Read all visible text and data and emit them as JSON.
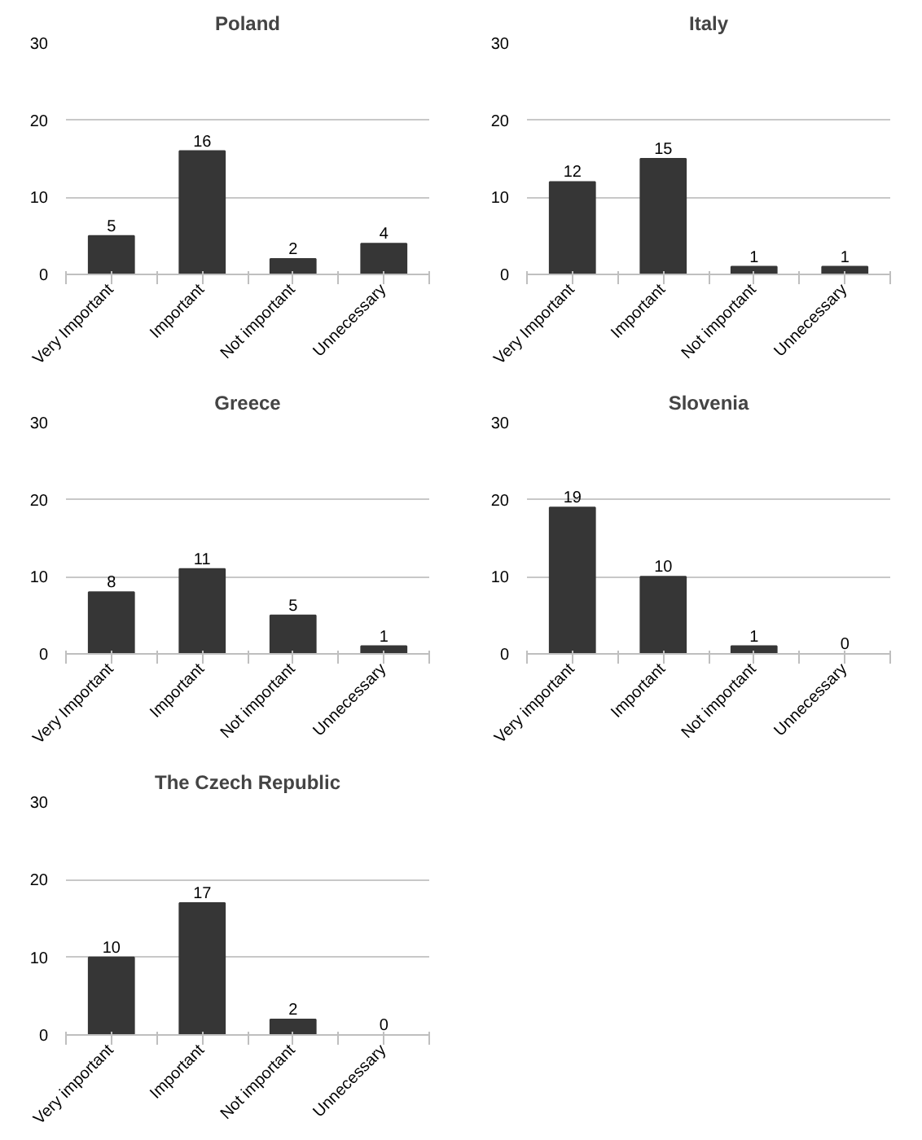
{
  "chart_data": [
    {
      "type": "bar",
      "title": "Poland",
      "categories": [
        "Very Important",
        "Important",
        "Not important",
        "Unnecessary"
      ],
      "values": [
        5,
        16,
        2,
        4
      ],
      "color": "#363636",
      "ylim": [
        0,
        30
      ],
      "yticks": [
        0,
        10,
        20,
        30
      ],
      "grid": "y",
      "data_labels": true
    },
    {
      "type": "bar",
      "title": "Italy",
      "categories": [
        "Very Important",
        "Important",
        "Not important",
        "Unnecessary"
      ],
      "values": [
        12,
        15,
        1,
        1
      ],
      "color": "#363636",
      "ylim": [
        0,
        30
      ],
      "yticks": [
        0,
        10,
        20,
        30
      ],
      "grid": "y",
      "data_labels": true
    },
    {
      "type": "bar",
      "title": "Greece",
      "categories": [
        "Very Important",
        "Important",
        "Not important",
        "Unnecessary"
      ],
      "values": [
        8,
        11,
        5,
        1
      ],
      "color": "#363636",
      "ylim": [
        0,
        30
      ],
      "yticks": [
        0,
        10,
        20,
        30
      ],
      "grid": "y",
      "data_labels": true
    },
    {
      "type": "bar",
      "title": "Slovenia",
      "categories": [
        "Very important",
        "Important",
        "Not important",
        "Unnecessary"
      ],
      "values": [
        19,
        10,
        1,
        0
      ],
      "color": "#363636",
      "ylim": [
        0,
        30
      ],
      "yticks": [
        0,
        10,
        20,
        30
      ],
      "grid": "y",
      "data_labels": true
    },
    {
      "type": "bar",
      "title": "The Czech Republic",
      "categories": [
        "Very important",
        "Important",
        "Not important",
        "Unnecessary"
      ],
      "values": [
        10,
        17,
        2,
        0
      ],
      "color": "#363636",
      "ylim": [
        0,
        30
      ],
      "yticks": [
        0,
        10,
        20,
        30
      ],
      "grid": "y",
      "data_labels": true
    }
  ]
}
